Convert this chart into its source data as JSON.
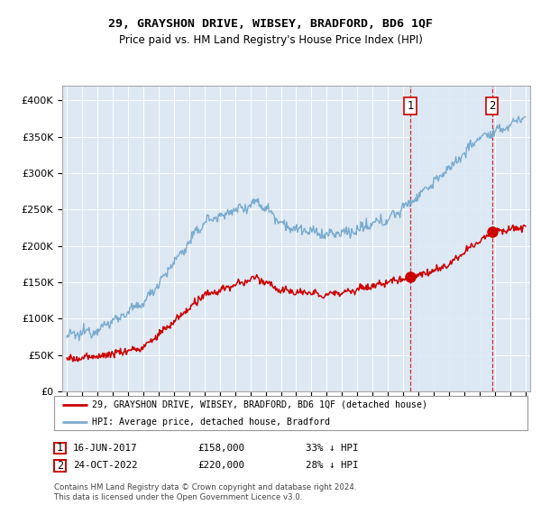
{
  "title": "29, GRAYSHON DRIVE, WIBSEY, BRADFORD, BD6 1QF",
  "subtitle": "Price paid vs. HM Land Registry's House Price Index (HPI)",
  "legend_line1": "29, GRAYSHON DRIVE, WIBSEY, BRADFORD, BD6 1QF (detached house)",
  "legend_line2": "HPI: Average price, detached house, Bradford",
  "annotation1_num": "1",
  "annotation1_date": "16-JUN-2017",
  "annotation1_price": "£158,000",
  "annotation1_note": "33% ↓ HPI",
  "annotation2_num": "2",
  "annotation2_date": "24-OCT-2022",
  "annotation2_price": "£220,000",
  "annotation2_note": "28% ↓ HPI",
  "copyright": "Contains HM Land Registry data © Crown copyright and database right 2024.\nThis data is licensed under the Open Government Licence v3.0.",
  "red_color": "#cc0000",
  "blue_color": "#7aabce",
  "highlight_color": "#dce8f5",
  "annotation_box_color": "#cc0000",
  "vline_color": "#cc0000",
  "background_color": "#dde8f3",
  "ylim": [
    0,
    420000
  ],
  "yticks": [
    0,
    50000,
    100000,
    150000,
    200000,
    250000,
    300000,
    350000,
    400000
  ],
  "year_start": 1995,
  "year_end": 2025,
  "purchase1_year": 2017.46,
  "purchase1_price": 158000,
  "purchase2_year": 2022.81,
  "purchase2_price": 220000
}
